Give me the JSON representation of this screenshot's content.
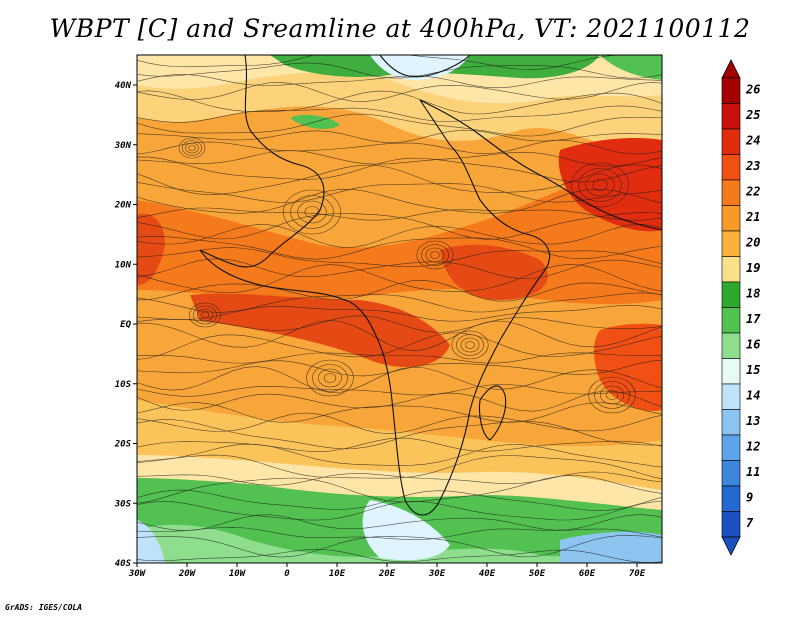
{
  "title": "WBPT [C] and Sreamline at 400hPa, VT: 2021100112",
  "credit": "GrADS: IGES/COLA",
  "map": {
    "lon_ticks": [
      "30W",
      "20W",
      "10W",
      "0",
      "10E",
      "20E",
      "30E",
      "40E",
      "50E",
      "60E",
      "70E"
    ],
    "lat_ticks": [
      "40N",
      "30N",
      "20N",
      "10N",
      "EQ",
      "10S",
      "20S",
      "30S",
      "40S"
    ],
    "lon_range": [
      -30,
      75
    ],
    "lat_range": [
      -40,
      45
    ]
  },
  "colorbar": {
    "levels": [
      "26",
      "25",
      "24",
      "23",
      "22",
      "21",
      "20",
      "19",
      "18",
      "17",
      "16",
      "15",
      "14",
      "13",
      "12",
      "11",
      "9",
      "7"
    ],
    "colors": [
      "#a50000",
      "#c8100a",
      "#e02d10",
      "#f05014",
      "#f57a1c",
      "#f89a28",
      "#fbb23c",
      "#fbe08a",
      "#2ea82e",
      "#52c152",
      "#8ede8e",
      "#e6fbf5",
      "#bfe3fa",
      "#8dc4f0",
      "#5ea4e8",
      "#3d86dc",
      "#2468d2",
      "#1a50c0"
    ]
  }
}
